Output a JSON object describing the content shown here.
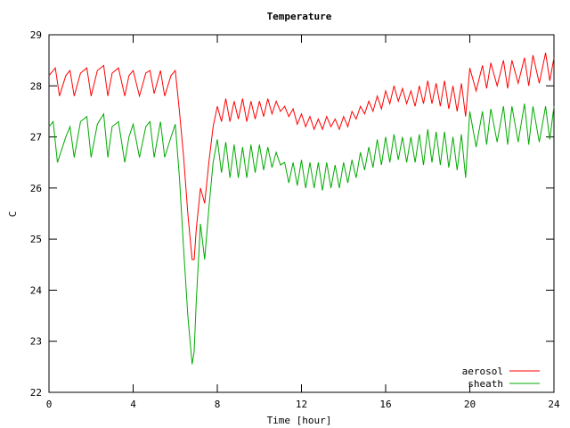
{
  "chart_data": {
    "type": "line",
    "title": "Temperature",
    "xlabel": "Time [hour]",
    "ylabel": "C",
    "xlim": [
      0,
      24
    ],
    "ylim": [
      22,
      29
    ],
    "xticks": [
      0,
      4,
      8,
      12,
      16,
      20,
      24
    ],
    "yticks": [
      22,
      23,
      24,
      25,
      26,
      27,
      28,
      29
    ],
    "grid": false,
    "legend_position": "bottom-right",
    "series": [
      {
        "name": "aerosol",
        "color": "#ff0000",
        "x": [
          0,
          0.3,
          0.5,
          0.8,
          1.0,
          1.2,
          1.5,
          1.8,
          2.0,
          2.3,
          2.6,
          2.8,
          3.0,
          3.3,
          3.6,
          3.8,
          4.0,
          4.3,
          4.6,
          4.8,
          5.0,
          5.3,
          5.5,
          5.8,
          6.0,
          6.2,
          6.4,
          6.6,
          6.8,
          6.9,
          7.0,
          7.2,
          7.4,
          7.6,
          7.8,
          8.0,
          8.2,
          8.4,
          8.6,
          8.8,
          9.0,
          9.2,
          9.4,
          9.6,
          9.8,
          10.0,
          10.2,
          10.4,
          10.6,
          10.8,
          11.0,
          11.2,
          11.4,
          11.6,
          11.8,
          12.0,
          12.2,
          12.4,
          12.6,
          12.8,
          13.0,
          13.2,
          13.4,
          13.6,
          13.8,
          14.0,
          14.2,
          14.4,
          14.6,
          14.8,
          15.0,
          15.2,
          15.4,
          15.6,
          15.8,
          16.0,
          16.2,
          16.4,
          16.6,
          16.8,
          17.0,
          17.2,
          17.4,
          17.6,
          17.8,
          18.0,
          18.2,
          18.4,
          18.6,
          18.8,
          19.0,
          19.2,
          19.4,
          19.6,
          19.8,
          20.0,
          20.3,
          20.6,
          20.8,
          21.0,
          21.3,
          21.6,
          21.8,
          22.0,
          22.3,
          22.6,
          22.8,
          23.0,
          23.3,
          23.6,
          23.8,
          24.0
        ],
        "y": [
          28.2,
          28.35,
          27.8,
          28.2,
          28.3,
          27.8,
          28.25,
          28.35,
          27.8,
          28.3,
          28.4,
          27.8,
          28.25,
          28.35,
          27.8,
          28.2,
          28.3,
          27.8,
          28.25,
          28.3,
          27.85,
          28.3,
          27.8,
          28.2,
          28.3,
          27.5,
          26.6,
          25.5,
          24.6,
          24.6,
          25.2,
          26.0,
          25.7,
          26.5,
          27.2,
          27.6,
          27.3,
          27.75,
          27.3,
          27.7,
          27.35,
          27.75,
          27.3,
          27.7,
          27.35,
          27.7,
          27.4,
          27.75,
          27.45,
          27.7,
          27.5,
          27.6,
          27.4,
          27.55,
          27.25,
          27.45,
          27.2,
          27.4,
          27.15,
          27.35,
          27.15,
          27.4,
          27.2,
          27.35,
          27.15,
          27.4,
          27.2,
          27.5,
          27.35,
          27.6,
          27.45,
          27.7,
          27.5,
          27.8,
          27.55,
          27.9,
          27.65,
          28.0,
          27.7,
          27.95,
          27.65,
          27.9,
          27.6,
          28.0,
          27.65,
          28.1,
          27.65,
          28.05,
          27.6,
          28.1,
          27.55,
          28.0,
          27.5,
          28.05,
          27.4,
          28.35,
          27.9,
          28.4,
          27.95,
          28.45,
          28.0,
          28.5,
          27.95,
          28.5,
          28.05,
          28.55,
          28.0,
          28.6,
          28.05,
          28.65,
          28.1,
          28.55
        ]
      },
      {
        "name": "sheath",
        "color": "#00aa00",
        "x": [
          0,
          0.2,
          0.4,
          0.8,
          1.0,
          1.2,
          1.5,
          1.8,
          2.0,
          2.3,
          2.6,
          2.8,
          3.0,
          3.3,
          3.6,
          3.8,
          4.0,
          4.3,
          4.6,
          4.8,
          5.0,
          5.3,
          5.5,
          5.8,
          6.0,
          6.2,
          6.4,
          6.6,
          6.8,
          6.9,
          7.0,
          7.2,
          7.4,
          7.6,
          7.8,
          8.0,
          8.2,
          8.4,
          8.6,
          8.8,
          9.0,
          9.2,
          9.4,
          9.6,
          9.8,
          10.0,
          10.2,
          10.4,
          10.6,
          10.8,
          11.0,
          11.2,
          11.4,
          11.6,
          11.8,
          12.0,
          12.2,
          12.4,
          12.6,
          12.8,
          13.0,
          13.2,
          13.4,
          13.6,
          13.8,
          14.0,
          14.2,
          14.4,
          14.6,
          14.8,
          15.0,
          15.2,
          15.4,
          15.6,
          15.8,
          16.0,
          16.2,
          16.4,
          16.6,
          16.8,
          17.0,
          17.2,
          17.4,
          17.6,
          17.8,
          18.0,
          18.2,
          18.4,
          18.6,
          18.8,
          19.0,
          19.2,
          19.4,
          19.6,
          19.8,
          20.0,
          20.3,
          20.6,
          20.8,
          21.0,
          21.3,
          21.6,
          21.8,
          22.0,
          22.3,
          22.6,
          22.8,
          23.0,
          23.3,
          23.6,
          23.8,
          24.0
        ],
        "y": [
          27.2,
          27.3,
          26.5,
          27.0,
          27.2,
          26.6,
          27.3,
          27.4,
          26.6,
          27.25,
          27.45,
          26.6,
          27.2,
          27.3,
          26.5,
          27.0,
          27.25,
          26.6,
          27.2,
          27.3,
          26.6,
          27.3,
          26.6,
          27.0,
          27.25,
          26.2,
          24.8,
          23.5,
          22.55,
          22.8,
          23.8,
          25.3,
          24.6,
          25.6,
          26.5,
          26.95,
          26.3,
          26.9,
          26.2,
          26.85,
          26.2,
          26.8,
          26.2,
          26.85,
          26.3,
          26.85,
          26.35,
          26.8,
          26.4,
          26.7,
          26.45,
          26.5,
          26.1,
          26.5,
          26.05,
          26.55,
          26.0,
          26.5,
          26.0,
          26.5,
          25.95,
          26.5,
          26.0,
          26.45,
          26.0,
          26.5,
          26.1,
          26.55,
          26.2,
          26.7,
          26.35,
          26.8,
          26.4,
          26.95,
          26.45,
          27.0,
          26.5,
          27.05,
          26.55,
          27.0,
          26.5,
          27.0,
          26.5,
          27.05,
          26.45,
          27.15,
          26.5,
          27.1,
          26.45,
          27.1,
          26.4,
          27.0,
          26.35,
          27.05,
          26.2,
          27.5,
          26.8,
          27.5,
          26.85,
          27.55,
          26.9,
          27.6,
          26.85,
          27.6,
          26.9,
          27.65,
          26.85,
          27.6,
          26.9,
          27.6,
          26.95,
          27.6
        ]
      }
    ]
  }
}
